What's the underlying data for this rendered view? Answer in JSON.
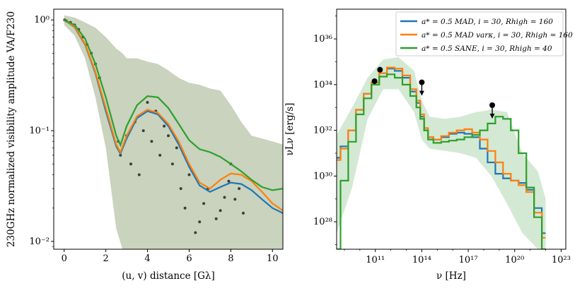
{
  "chart_data": [
    {
      "type": "line",
      "xlabel": "(u, v) distance [Gλ]",
      "ylabel": "230GHz normalized visibility amplitude VA/F230",
      "xlim": [
        -0.5,
        10.5
      ],
      "ylim": [
        0.0085,
        1.25
      ],
      "yscale": "log",
      "x_ticks": [
        0,
        2,
        4,
        6,
        8,
        10
      ],
      "x_tick_labels": [
        "0",
        "2",
        "4",
        "6",
        "8",
        "10"
      ],
      "y_ticks": [
        0.01,
        0.1,
        1
      ],
      "y_tick_labels": [
        "10⁻²",
        "10⁻¹",
        "10⁰"
      ],
      "grid": false,
      "legend": "none",
      "series": [
        {
          "color": "#1f77b4",
          "x": [
            0,
            0.5,
            1.0,
            1.5,
            2.0,
            2.5,
            2.7,
            3.0,
            3.5,
            4.0,
            4.5,
            5.0,
            5.5,
            6.0,
            6.5,
            7.0,
            7.5,
            8.0,
            8.5,
            9.0,
            9.5,
            10.0,
            10.5
          ],
          "y": [
            1.0,
            0.86,
            0.6,
            0.33,
            0.15,
            0.072,
            0.062,
            0.085,
            0.13,
            0.15,
            0.14,
            0.11,
            0.075,
            0.047,
            0.032,
            0.028,
            0.031,
            0.034,
            0.033,
            0.029,
            0.024,
            0.02,
            0.018
          ]
        },
        {
          "color": "#ff7f0e",
          "x": [
            0,
            0.5,
            1.0,
            1.5,
            2.0,
            2.5,
            2.7,
            3.0,
            3.5,
            4.0,
            4.5,
            5.0,
            5.5,
            6.0,
            6.5,
            7.0,
            7.5,
            8.0,
            8.5,
            9.0,
            9.5,
            10.0,
            10.5
          ],
          "y": [
            1.0,
            0.87,
            0.61,
            0.34,
            0.16,
            0.075,
            0.064,
            0.09,
            0.135,
            0.155,
            0.145,
            0.115,
            0.08,
            0.05,
            0.034,
            0.03,
            0.036,
            0.041,
            0.04,
            0.035,
            0.028,
            0.022,
            0.019
          ]
        },
        {
          "color": "#2ca02c",
          "x": [
            0,
            0.5,
            1.0,
            1.5,
            2.0,
            2.5,
            2.7,
            3.0,
            3.5,
            4.0,
            4.5,
            5.0,
            5.5,
            6.0,
            6.5,
            7.0,
            7.5,
            8.0,
            8.5,
            9.0,
            9.5,
            10.0,
            10.5
          ],
          "y": [
            1.0,
            0.9,
            0.68,
            0.4,
            0.2,
            0.09,
            0.074,
            0.11,
            0.17,
            0.205,
            0.2,
            0.16,
            0.115,
            0.082,
            0.068,
            0.064,
            0.058,
            0.05,
            0.043,
            0.036,
            0.031,
            0.029,
            0.03
          ]
        }
      ],
      "band": {
        "color": "#9caf86",
        "x": [
          0,
          0.5,
          1.0,
          1.5,
          2.0,
          2.5,
          2.8,
          3.0,
          3.5,
          4.0,
          4.5,
          5.0,
          5.5,
          6.0,
          6.5,
          7.0,
          7.5,
          8.0,
          8.5,
          9.0,
          9.5,
          10.0,
          10.5
        ],
        "upper": [
          1.1,
          1.05,
          0.95,
          0.85,
          0.7,
          0.55,
          0.5,
          0.45,
          0.45,
          0.42,
          0.4,
          0.35,
          0.3,
          0.27,
          0.26,
          0.24,
          0.23,
          0.17,
          0.12,
          0.09,
          0.085,
          0.08,
          0.075
        ],
        "lower": [
          0.9,
          0.72,
          0.45,
          0.2,
          0.07,
          0.013,
          0.0085,
          0.0085,
          0.0085,
          0.0085,
          0.0085,
          0.0085,
          0.0085,
          0.0085,
          0.0085,
          0.0085,
          0.0085,
          0.0085,
          0.0085,
          0.0085,
          0.0085,
          0.0085,
          0.0085
        ]
      },
      "observations": {
        "color": "#000000",
        "x": [
          0.02,
          0.1,
          0.3,
          0.5,
          0.7,
          0.9,
          1.1,
          1.3,
          1.5,
          1.7,
          2.6,
          2.7,
          3.0,
          3.2,
          3.4,
          3.6,
          3.8,
          4.0,
          4.2,
          4.4,
          4.6,
          4.8,
          5.0,
          5.2,
          5.4,
          5.6,
          5.8,
          6.0,
          6.3,
          6.5,
          6.7,
          6.9,
          7.3,
          7.5,
          7.7,
          7.9,
          8.0,
          8.2,
          8.4,
          8.6
        ],
        "y": [
          1.0,
          0.98,
          0.95,
          0.9,
          0.82,
          0.7,
          0.6,
          0.5,
          0.4,
          0.3,
          0.08,
          0.06,
          0.09,
          0.05,
          0.12,
          0.04,
          0.1,
          0.18,
          0.08,
          0.15,
          0.06,
          0.11,
          0.09,
          0.05,
          0.07,
          0.03,
          0.02,
          0.04,
          0.012,
          0.015,
          0.022,
          0.03,
          0.016,
          0.019,
          0.025,
          0.035,
          0.05,
          0.024,
          0.03,
          0.018
        ]
      }
    },
    {
      "type": "line",
      "xlabel": "ν [Hz]",
      "ylabel": "νLν [erg/s]",
      "xscale": "log",
      "yscale": "log",
      "xlim": [
        8.5,
        23.3
      ],
      "ylim": [
        26.8,
        37.3
      ],
      "x_ticks": [
        11,
        14,
        17,
        20,
        23
      ],
      "x_tick_labels": [
        "10¹¹",
        "10¹⁴",
        "10¹⁷",
        "10²⁰",
        "10²³"
      ],
      "y_ticks": [
        28,
        30,
        32,
        34,
        36
      ],
      "y_tick_labels": [
        "10²⁸",
        "10³⁰",
        "10³²",
        "10³⁴",
        "10³⁶"
      ],
      "grid": false,
      "legend": "top-right",
      "series": [
        {
          "name": "a* = 0.5 MAD, i = 30, Rhigh = 160",
          "color": "#1f77b4",
          "x": [
            8.5,
            9.0,
            9.5,
            10.0,
            10.5,
            11.0,
            11.5,
            12.0,
            12.5,
            13.0,
            13.5,
            13.8,
            14.0,
            14.3,
            14.5,
            15.0,
            15.5,
            16.0,
            16.5,
            17.0,
            17.5,
            18.0,
            18.5,
            19.0,
            19.5,
            20.0,
            20.5,
            21.0,
            21.5,
            22.0
          ],
          "y": [
            30.8,
            31.3,
            32.0,
            32.9,
            33.6,
            34.1,
            34.5,
            34.7,
            34.6,
            34.3,
            33.7,
            33.2,
            32.6,
            32.0,
            31.7,
            31.6,
            31.7,
            31.85,
            31.9,
            31.85,
            31.7,
            31.2,
            30.6,
            30.1,
            29.9,
            29.8,
            29.7,
            29.4,
            28.6,
            27.5
          ]
        },
        {
          "name": "a* = 0.5 MAD varκ, i = 30, Rhigh = 160",
          "color": "#ff7f0e",
          "x": [
            8.5,
            9.0,
            9.5,
            10.0,
            10.5,
            11.0,
            11.5,
            12.0,
            12.5,
            13.0,
            13.5,
            13.8,
            14.0,
            14.3,
            14.5,
            15.0,
            15.5,
            16.0,
            16.5,
            17.0,
            17.5,
            18.0,
            18.5,
            19.0,
            19.5,
            20.0,
            20.5,
            21.0,
            21.5,
            22.0
          ],
          "y": [
            30.7,
            31.2,
            32.0,
            32.9,
            33.6,
            34.1,
            34.5,
            34.75,
            34.7,
            34.4,
            33.8,
            33.3,
            32.7,
            32.1,
            31.7,
            31.6,
            31.75,
            31.9,
            32.0,
            32.05,
            31.9,
            31.6,
            31.1,
            30.6,
            30.1,
            29.8,
            29.6,
            29.3,
            28.4,
            27.3
          ]
        },
        {
          "name": "a* = 0.5 SANE, i = 30, Rhigh = 40",
          "color": "#2ca02c",
          "x": [
            8.5,
            9.0,
            9.5,
            10.0,
            10.5,
            11.0,
            11.5,
            12.0,
            12.5,
            13.0,
            13.5,
            13.8,
            14.0,
            14.3,
            14.5,
            15.0,
            15.5,
            16.0,
            16.5,
            17.0,
            17.5,
            18.0,
            18.5,
            19.0,
            19.5,
            20.0,
            20.5,
            21.0,
            21.5,
            22.0
          ],
          "y": [
            26.8,
            29.8,
            31.5,
            32.7,
            33.4,
            34.0,
            34.35,
            34.45,
            34.3,
            34.0,
            33.5,
            33.0,
            32.5,
            32.0,
            31.6,
            31.45,
            31.5,
            31.55,
            31.6,
            31.7,
            31.8,
            32.0,
            32.3,
            32.6,
            32.5,
            32.0,
            31.0,
            29.5,
            28.2,
            26.8
          ]
        }
      ],
      "band": {
        "color": "#9ecf9e",
        "x": [
          8.5,
          9.5,
          10.5,
          11.5,
          12.5,
          13.5,
          14.0,
          14.5,
          15.5,
          16.5,
          17.5,
          18.5,
          19.5,
          20.5,
          21.5,
          22.0
        ],
        "upper": [
          31.8,
          33.0,
          34.3,
          35.1,
          35.2,
          34.6,
          33.3,
          32.6,
          32.5,
          32.6,
          32.8,
          32.9,
          32.8,
          31.0,
          30.2,
          29.0
        ],
        "lower": [
          27.5,
          29.5,
          32.5,
          33.8,
          33.8,
          32.8,
          31.6,
          31.2,
          31.1,
          31.0,
          30.8,
          30.0,
          28.8,
          27.5,
          26.8,
          26.8
        ]
      },
      "observations": {
        "color": "#000000",
        "points": [
          {
            "x": 10.95,
            "y": 34.15,
            "upper_limit": false
          },
          {
            "x": 11.3,
            "y": 34.65,
            "upper_limit": false
          },
          {
            "x": 14.0,
            "y": 34.1,
            "upper_limit": true
          },
          {
            "x": 18.55,
            "y": 33.1,
            "upper_limit": true
          }
        ]
      }
    }
  ]
}
